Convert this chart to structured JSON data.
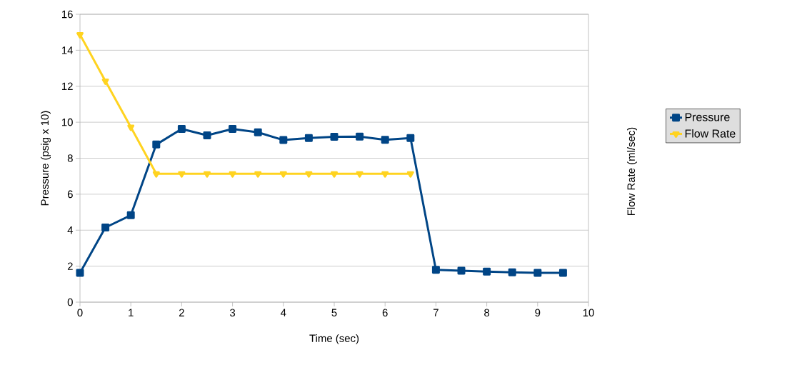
{
  "chart_data": {
    "type": "line",
    "xlabel": "Time (sec)",
    "ylabel": "Pressure (psig x 10)",
    "y2label": "Flow Rate (ml/sec)",
    "xlim": [
      0,
      10
    ],
    "ylim": [
      0,
      16
    ],
    "xticks": [
      0,
      1,
      2,
      3,
      4,
      5,
      6,
      7,
      8,
      9,
      10
    ],
    "yticks": [
      0,
      2,
      4,
      6,
      8,
      10,
      12,
      14,
      16
    ],
    "grid": "y",
    "legend": "right",
    "line_style": "solid",
    "series": [
      {
        "name": "Pressure",
        "color": "#004586",
        "marker": "square",
        "x": [
          0,
          0.5,
          1,
          1.5,
          2,
          2.5,
          3,
          3.5,
          4,
          4.5,
          5,
          5.5,
          6,
          6.5,
          7,
          7.5,
          8,
          8.5,
          9,
          9.5
        ],
        "values": [
          1.63,
          4.15,
          4.83,
          8.76,
          9.63,
          9.27,
          9.63,
          9.44,
          9.01,
          9.12,
          9.19,
          9.2,
          9.02,
          9.12,
          1.8,
          1.75,
          1.7,
          1.66,
          1.63,
          1.63
        ]
      },
      {
        "name": "Flow Rate",
        "color": "#ffd320",
        "marker": "triangle",
        "x": [
          0,
          0.5,
          1,
          1.5,
          2,
          2.5,
          3,
          3.5,
          4,
          4.5,
          5,
          5.5,
          6,
          6.5
        ],
        "values": [
          14.87,
          12.29,
          9.73,
          7.14,
          7.14,
          7.14,
          7.14,
          7.14,
          7.14,
          7.14,
          7.14,
          7.14,
          7.14,
          7.14
        ]
      }
    ]
  }
}
